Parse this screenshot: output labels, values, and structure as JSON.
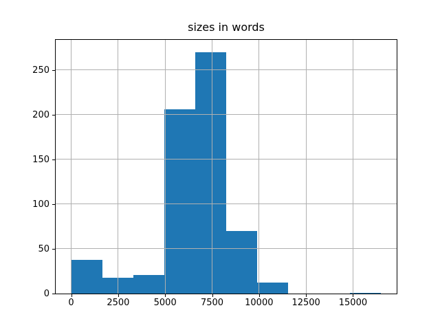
{
  "figure": {
    "background": "#ffffff"
  },
  "chart_data": {
    "type": "bar",
    "subtype": "histogram",
    "title": "sizes in words",
    "xlabel": "",
    "ylabel": "",
    "bin_edges": [
      0,
      1650,
      3300,
      4950,
      6600,
      8250,
      9900,
      11550,
      13200,
      14850,
      16500
    ],
    "counts": [
      38,
      18,
      21,
      206,
      270,
      70,
      12,
      0,
      0,
      1
    ],
    "xlim": [
      -825,
      17325
    ],
    "ylim": [
      0,
      283.5
    ],
    "x_ticks": [
      0,
      2500,
      5000,
      7500,
      10000,
      12500,
      15000
    ],
    "x_tick_labels": [
      "0",
      "2500",
      "5000",
      "7500",
      "10000",
      "12500",
      "15000"
    ],
    "y_ticks": [
      0,
      50,
      100,
      150,
      200,
      250
    ],
    "y_tick_labels": [
      "0",
      "50",
      "100",
      "150",
      "200",
      "250"
    ],
    "grid": true,
    "grid_above_bars": true,
    "legend": false,
    "colors": {
      "bar": "#1f77b4",
      "grid": "#b0b0b0",
      "spine": "#000000",
      "text": "#000000",
      "background": "#ffffff"
    }
  }
}
